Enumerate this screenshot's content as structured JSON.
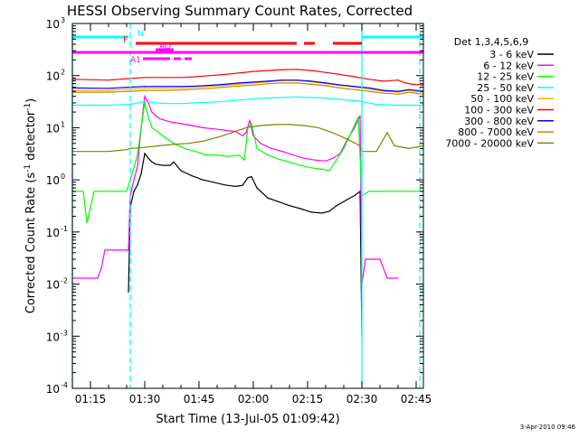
{
  "chart_data": {
    "type": "line",
    "title": "HESSI Observing Summary Count Rates, Corrected",
    "xlabel": "Start Time (13-Jul-05 01:09:42)",
    "ylabel_main": "Corrected Count Rate (s",
    "ylabel_sup1": "-1",
    "ylabel_mid": " detector",
    "ylabel_sup2": "-1",
    "ylabel_end": ")",
    "footer": "3-Apr-2010 09:46",
    "x_range_min": [
      70,
      167
    ],
    "y_range_log10": [
      -4,
      3
    ],
    "y_tick_labels": [
      {
        "base": "10",
        "exp": "-4"
      },
      {
        "base": "10",
        "exp": "-3"
      },
      {
        "base": "10",
        "exp": "-2"
      },
      {
        "base": "10",
        "exp": "-1"
      },
      {
        "base": "10",
        "exp": "0"
      },
      {
        "base": "10",
        "exp": "1"
      },
      {
        "base": "10",
        "exp": "2"
      },
      {
        "base": "10",
        "exp": "3"
      }
    ],
    "x_ticks": [
      {
        "t": 75,
        "label": "01:15"
      },
      {
        "t": 90,
        "label": "01:30"
      },
      {
        "t": 105,
        "label": "01:45"
      },
      {
        "t": 120,
        "label": "02:00"
      },
      {
        "t": 135,
        "label": "02:15"
      },
      {
        "t": 150,
        "label": "02:30"
      },
      {
        "t": 165,
        "label": "02:45"
      }
    ],
    "legend_title": "Det 1,3,4,5,6,9",
    "series": [
      {
        "name": "3 - 6 keV",
        "color": "#000000",
        "points": [
          [
            85.5,
            0.007
          ],
          [
            86,
            0.3
          ],
          [
            87,
            0.6
          ],
          [
            88,
            0.8
          ],
          [
            89,
            1.3
          ],
          [
            90,
            3.2
          ],
          [
            91,
            2.6
          ],
          [
            92,
            2.2
          ],
          [
            93,
            2.0
          ],
          [
            95,
            1.9
          ],
          [
            97,
            1.9
          ],
          [
            98,
            2.2
          ],
          [
            100,
            1.5
          ],
          [
            103,
            1.2
          ],
          [
            106,
            1.0
          ],
          [
            109,
            0.9
          ],
          [
            112,
            0.8
          ],
          [
            115,
            0.75
          ],
          [
            117,
            0.78
          ],
          [
            118.5,
            1.1
          ],
          [
            119.5,
            1.15
          ],
          [
            121,
            0.7
          ],
          [
            124,
            0.45
          ],
          [
            127,
            0.38
          ],
          [
            130,
            0.32
          ],
          [
            133,
            0.28
          ],
          [
            136,
            0.24
          ],
          [
            139,
            0.23
          ],
          [
            141,
            0.25
          ],
          [
            143,
            0.32
          ],
          [
            146,
            0.42
          ],
          [
            148,
            0.5
          ],
          [
            149.5,
            0.6
          ],
          [
            150,
            0.001
          ]
        ]
      },
      {
        "name": "6 - 12 keV",
        "color": "#ff00ff",
        "points": [
          [
            70,
            0.013
          ],
          [
            77,
            0.013
          ],
          [
            78,
            0.02
          ],
          [
            79,
            0.045
          ],
          [
            85.5,
            0.045
          ],
          [
            86,
            0.5
          ],
          [
            87,
            1.0
          ],
          [
            88,
            1.8
          ],
          [
            89,
            10
          ],
          [
            90,
            40
          ],
          [
            91,
            30
          ],
          [
            92,
            20
          ],
          [
            94,
            15
          ],
          [
            97,
            13
          ],
          [
            100,
            12
          ],
          [
            103,
            11
          ],
          [
            106,
            10
          ],
          [
            109,
            9.5
          ],
          [
            112,
            9
          ],
          [
            115,
            8.5
          ],
          [
            117,
            7
          ],
          [
            118,
            8
          ],
          [
            119,
            14
          ],
          [
            120,
            7
          ],
          [
            122,
            5
          ],
          [
            125,
            4
          ],
          [
            128,
            3.5
          ],
          [
            131,
            3
          ],
          [
            134,
            2.6
          ],
          [
            137,
            2.4
          ],
          [
            140,
            2.3
          ],
          [
            142,
            2.6
          ],
          [
            144,
            3.2
          ],
          [
            146,
            6
          ],
          [
            148,
            10
          ],
          [
            149.5,
            17
          ],
          [
            150,
            0.01
          ],
          [
            151,
            0.03
          ],
          [
            155,
            0.03
          ],
          [
            157,
            0.013
          ],
          [
            160,
            0.013
          ]
        ]
      },
      {
        "name": "12 - 25 keV",
        "color": "#00ff00",
        "points": [
          [
            70,
            0.6
          ],
          [
            73,
            0.6
          ],
          [
            74,
            0.15
          ],
          [
            76,
            0.6
          ],
          [
            80,
            0.6
          ],
          [
            85,
            0.6
          ],
          [
            86,
            1.0
          ],
          [
            88,
            3
          ],
          [
            89,
            10
          ],
          [
            90,
            30
          ],
          [
            91,
            16
          ],
          [
            92,
            10
          ],
          [
            95,
            7
          ],
          [
            98,
            5
          ],
          [
            101,
            4
          ],
          [
            104,
            3.5
          ],
          [
            107,
            3
          ],
          [
            110,
            3
          ],
          [
            113,
            2.8
          ],
          [
            116,
            3
          ],
          [
            117.5,
            2.4
          ],
          [
            118.5,
            10
          ],
          [
            119.5,
            12
          ],
          [
            121,
            4
          ],
          [
            124,
            3
          ],
          [
            127,
            2.5
          ],
          [
            130,
            2.2
          ],
          [
            133,
            1.9
          ],
          [
            136,
            1.7
          ],
          [
            139,
            1.6
          ],
          [
            141,
            1.5
          ],
          [
            143,
            2.4
          ],
          [
            145,
            4
          ],
          [
            147,
            8
          ],
          [
            149,
            16
          ],
          [
            150,
            0.5
          ],
          [
            152,
            0.6
          ],
          [
            160,
            0.6
          ],
          [
            167,
            0.6
          ]
        ]
      },
      {
        "name": "25 - 50 keV",
        "color": "#00ffff",
        "points": [
          [
            70,
            27
          ],
          [
            80,
            27
          ],
          [
            86,
            28
          ],
          [
            88,
            30
          ],
          [
            90,
            32
          ],
          [
            93,
            30
          ],
          [
            96,
            29
          ],
          [
            100,
            29
          ],
          [
            104,
            30
          ],
          [
            108,
            31
          ],
          [
            112,
            32
          ],
          [
            116,
            34
          ],
          [
            120,
            36
          ],
          [
            124,
            37
          ],
          [
            128,
            38
          ],
          [
            132,
            39
          ],
          [
            136,
            38
          ],
          [
            140,
            37
          ],
          [
            144,
            35
          ],
          [
            148,
            33
          ],
          [
            150,
            32
          ],
          [
            154,
            28
          ],
          [
            160,
            27
          ],
          [
            167,
            27
          ]
        ]
      },
      {
        "name": "50 - 100 keV",
        "color": "#ffaa00",
        "points": [
          [
            70,
            52
          ],
          [
            80,
            52
          ],
          [
            86,
            55
          ],
          [
            90,
            58
          ],
          [
            95,
            58
          ],
          [
            100,
            58
          ],
          [
            104,
            60
          ],
          [
            108,
            62
          ],
          [
            112,
            65
          ],
          [
            116,
            68
          ],
          [
            120,
            72
          ],
          [
            124,
            76
          ],
          [
            128,
            80
          ],
          [
            132,
            80
          ],
          [
            136,
            76
          ],
          [
            140,
            70
          ],
          [
            144,
            65
          ],
          [
            148,
            60
          ],
          [
            152,
            55
          ],
          [
            156,
            50
          ],
          [
            160,
            48
          ],
          [
            163,
            52
          ],
          [
            167,
            48
          ]
        ]
      },
      {
        "name": "100 - 300 keV",
        "color": "#ff0000",
        "points": [
          [
            70,
            85
          ],
          [
            80,
            82
          ],
          [
            86,
            88
          ],
          [
            90,
            92
          ],
          [
            95,
            92
          ],
          [
            100,
            92
          ],
          [
            104,
            95
          ],
          [
            108,
            100
          ],
          [
            112,
            105
          ],
          [
            116,
            112
          ],
          [
            120,
            120
          ],
          [
            124,
            125
          ],
          [
            128,
            130
          ],
          [
            132,
            132
          ],
          [
            136,
            125
          ],
          [
            140,
            115
          ],
          [
            144,
            105
          ],
          [
            148,
            95
          ],
          [
            152,
            85
          ],
          [
            156,
            78
          ],
          [
            158,
            80
          ],
          [
            160,
            82
          ],
          [
            162,
            72
          ],
          [
            164,
            68
          ],
          [
            167,
            66
          ]
        ]
      },
      {
        "name": "300 - 800 keV",
        "color": "#0000ff",
        "points": [
          [
            70,
            58
          ],
          [
            80,
            57
          ],
          [
            86,
            60
          ],
          [
            90,
            62
          ],
          [
            95,
            62
          ],
          [
            100,
            62
          ],
          [
            104,
            63
          ],
          [
            108,
            65
          ],
          [
            112,
            68
          ],
          [
            116,
            72
          ],
          [
            120,
            75
          ],
          [
            124,
            78
          ],
          [
            128,
            82
          ],
          [
            132,
            82
          ],
          [
            136,
            78
          ],
          [
            140,
            72
          ],
          [
            144,
            66
          ],
          [
            148,
            62
          ],
          [
            152,
            58
          ],
          [
            156,
            52
          ],
          [
            160,
            50
          ],
          [
            163,
            54
          ],
          [
            167,
            50
          ]
        ]
      },
      {
        "name": "800 - 7000 keV",
        "color": "#bb8800",
        "points": [
          [
            70,
            48
          ],
          [
            80,
            48
          ],
          [
            86,
            50
          ],
          [
            90,
            52
          ],
          [
            95,
            52
          ],
          [
            100,
            53
          ],
          [
            104,
            55
          ],
          [
            108,
            57
          ],
          [
            112,
            60
          ],
          [
            116,
            63
          ],
          [
            120,
            66
          ],
          [
            124,
            70
          ],
          [
            128,
            72
          ],
          [
            132,
            72
          ],
          [
            136,
            68
          ],
          [
            140,
            64
          ],
          [
            144,
            58
          ],
          [
            148,
            54
          ],
          [
            152,
            50
          ],
          [
            156,
            46
          ],
          [
            160,
            44
          ],
          [
            163,
            48
          ],
          [
            167,
            44
          ]
        ]
      },
      {
        "name": "7000 - 20000 keV",
        "color": "#808000",
        "points": [
          [
            70,
            3.5
          ],
          [
            80,
            3.5
          ],
          [
            85,
            3.8
          ],
          [
            86,
            4
          ],
          [
            90,
            4.2
          ],
          [
            94,
            4.5
          ],
          [
            98,
            4.8
          ],
          [
            102,
            5
          ],
          [
            106,
            5.5
          ],
          [
            110,
            6.5
          ],
          [
            114,
            8
          ],
          [
            118,
            10
          ],
          [
            122,
            11
          ],
          [
            126,
            11.5
          ],
          [
            130,
            11.5
          ],
          [
            134,
            11
          ],
          [
            138,
            10
          ],
          [
            142,
            8
          ],
          [
            146,
            6
          ],
          [
            149.5,
            4.5
          ],
          [
            150,
            3.5
          ],
          [
            154,
            3.5
          ],
          [
            157,
            8
          ],
          [
            159,
            4.5
          ],
          [
            163,
            4
          ],
          [
            167,
            4.5
          ]
        ]
      }
    ],
    "vlines_solid_cyan": [
      70,
      150
    ],
    "vlines_dashed_cyan": [
      86,
      166
    ],
    "flag_bars": [
      {
        "label": "",
        "color": "#00ffff",
        "y_row": 1,
        "segments": [
          [
            70,
            85.5
          ],
          [
            150,
            167
          ]
        ]
      },
      {
        "label": "N",
        "color": "#00ffff",
        "y_row": 1,
        "segments": [],
        "label_at": 88
      },
      {
        "label": "F",
        "color": "#ff0000",
        "y_row": 2,
        "segments": [
          [
            87.5,
            132
          ],
          [
            134,
            137
          ],
          [
            142,
            150
          ]
        ],
        "label_at": 84
      },
      {
        "label": "AQ",
        "color": "#ff00ff",
        "y_row": 3,
        "segments": [
          [
            93,
            98
          ]
        ],
        "label_at": 94
      },
      {
        "label": "",
        "color": "#ff00ff",
        "y_row": 3.5,
        "segments": [
          [
            70,
            167
          ]
        ]
      },
      {
        "label": "A1",
        "color": "#ff00ff",
        "y_row": 4,
        "segments": [
          [
            89.5,
            97
          ],
          [
            98,
            100
          ],
          [
            101,
            103
          ]
        ],
        "label_at": 86
      }
    ]
  }
}
